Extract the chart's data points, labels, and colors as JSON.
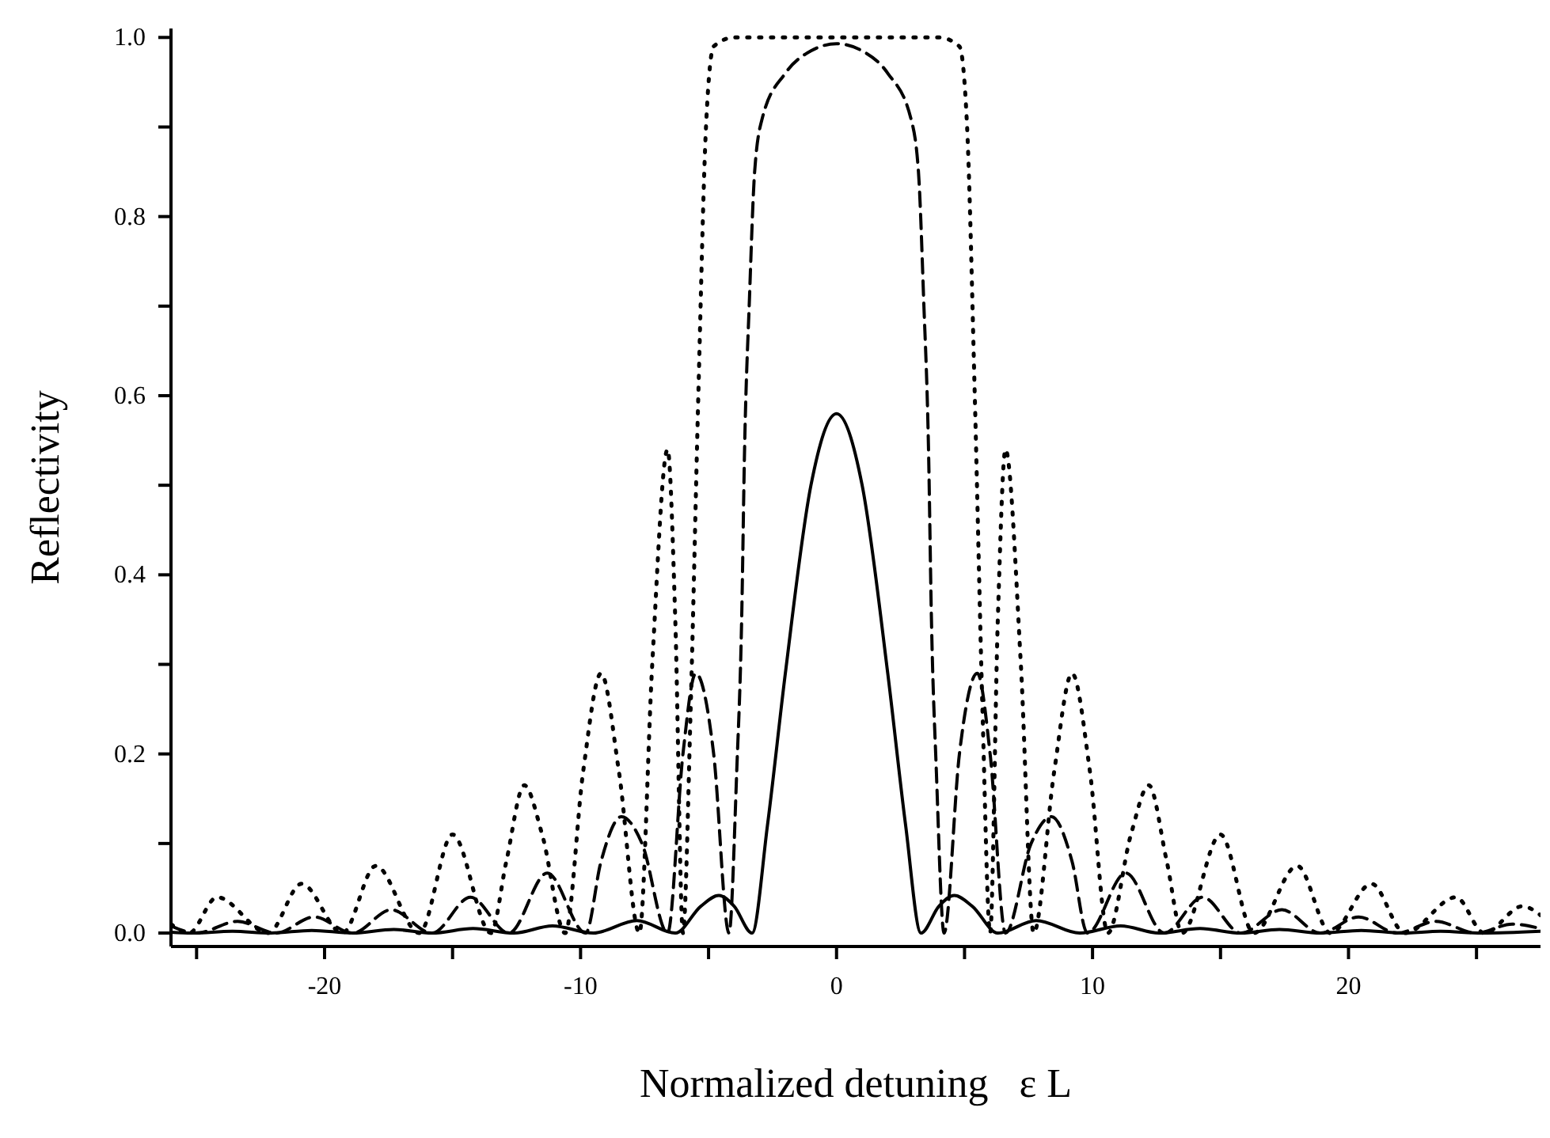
{
  "chart_data": {
    "type": "line",
    "xlabel": "Normalized detuning   ε L",
    "ylabel": "Reflectivity",
    "xlim": [
      -26,
      27.5
    ],
    "ylim": [
      -0.015,
      1.01
    ],
    "xticks": [
      {
        "value": -25,
        "label": null
      },
      {
        "value": -20,
        "label": "-20"
      },
      {
        "value": -15,
        "label": null
      },
      {
        "value": -10,
        "label": "-10"
      },
      {
        "value": -5,
        "label": null
      },
      0,
      {
        "value": 5,
        "label": null
      },
      10,
      {
        "value": 15,
        "label": null
      },
      20,
      {
        "value": 25,
        "label": null
      }
    ],
    "yticks": [
      {
        "value": 0,
        "label": "0.0"
      },
      {
        "value": 0.1,
        "label": null
      },
      0.2,
      {
        "value": 0.3,
        "label": null
      },
      0.4,
      {
        "value": 0.5,
        "label": null
      },
      0.6,
      {
        "value": 0.7,
        "label": null
      },
      0.8,
      {
        "value": 0.9,
        "label": null
      },
      {
        "value": 1,
        "label": "1.0"
      }
    ],
    "grid": false,
    "legend": false,
    "series": [
      {
        "color": "#000000",
        "line_style": "solid",
        "x": [
          -26,
          -25.2,
          -23.6,
          -22.1,
          -20.5,
          -18.9,
          -17.3,
          -15.8,
          -14.2,
          -12.6,
          -11.1,
          -9.5,
          -7.8,
          -6.3,
          -5.3,
          -4.6,
          -4,
          -3.3,
          -2.7,
          -2,
          -1,
          0,
          1,
          2,
          2.7,
          3.3,
          4,
          4.6,
          5.3,
          6.3,
          7.8,
          9.5,
          11.1,
          12.6,
          14.2,
          15.8,
          17.3,
          18.9,
          20.5,
          22.1,
          23.6,
          25.2,
          27.5
        ],
        "values": [
          0.001,
          0,
          0.002,
          0,
          0.003,
          0,
          0.004,
          0,
          0.005,
          0,
          0.008,
          0,
          0.014,
          0,
          0.03,
          0.042,
          0.03,
          0,
          0.12,
          0.29,
          0.5,
          0.58,
          0.5,
          0.29,
          0.12,
          0,
          0.03,
          0.042,
          0.03,
          0,
          0.014,
          0,
          0.008,
          0,
          0.005,
          0,
          0.004,
          0,
          0.003,
          0,
          0.002,
          0,
          0.002
        ]
      },
      {
        "color": "#000000",
        "line_style": "dashed",
        "x": [
          -26,
          -25,
          -23.4,
          -21.9,
          -20.4,
          -18.9,
          -17.4,
          -15.8,
          -14.3,
          -12.8,
          -11.3,
          -9.8,
          -9.2,
          -8.4,
          -7.6,
          -6.6,
          -6,
          -5.5,
          -4.8,
          -4.2,
          -3.9,
          -3.7,
          -3.6,
          -3.4,
          -3.2,
          -2.9,
          -2,
          -1,
          0,
          1,
          2,
          2.9,
          3.2,
          3.4,
          3.6,
          3.7,
          3.9,
          4.2,
          4.8,
          5.5,
          6,
          6.6,
          7.6,
          8.4,
          9.2,
          9.8,
          11.3,
          12.8,
          14.3,
          15.8,
          17.4,
          18.9,
          20.4,
          21.9,
          23.4,
          25,
          26.4,
          27.5
        ],
        "values": [
          0.008,
          0,
          0.013,
          0,
          0.018,
          0,
          0.026,
          0,
          0.04,
          0,
          0.067,
          0,
          0.08,
          0.13,
          0.1,
          0,
          0.2,
          0.29,
          0.2,
          0,
          0.18,
          0.36,
          0.53,
          0.71,
          0.85,
          0.91,
          0.96,
          0.985,
          0.993,
          0.985,
          0.96,
          0.91,
          0.85,
          0.71,
          0.53,
          0.36,
          0.18,
          0,
          0.2,
          0.29,
          0.2,
          0,
          0.1,
          0.13,
          0.08,
          0,
          0.067,
          0,
          0.04,
          0,
          0.026,
          0,
          0.018,
          0,
          0.013,
          0,
          0.01,
          0.005
        ]
      },
      {
        "color": "#000000",
        "line_style": "dotted",
        "x": [
          -26,
          -25.3,
          -24.2,
          -22.2,
          -20.9,
          -19.3,
          -18,
          -16.3,
          -15,
          -13.5,
          -12.9,
          -12.2,
          -11.5,
          -10.6,
          -9.9,
          -9.2,
          -8.5,
          -7.7,
          -7.2,
          -6.6,
          -6.3,
          -6,
          -5.7,
          -5.4,
          -5.1,
          -4.8,
          -4,
          0,
          4,
          4.8,
          5.1,
          5.4,
          5.7,
          6,
          6.3,
          6.6,
          7.2,
          7.7,
          8.5,
          9.2,
          9.9,
          10.6,
          11.5,
          12.2,
          12.9,
          13.5,
          15,
          16.3,
          18,
          19.3,
          20.9,
          22.2,
          24.2,
          25.3,
          26.8,
          27.5
        ],
        "values": [
          0.01,
          0,
          0.04,
          0,
          0.055,
          0,
          0.075,
          0,
          0.11,
          0,
          0.08,
          0.165,
          0.11,
          0,
          0.18,
          0.29,
          0.18,
          0,
          0.3,
          0.54,
          0.35,
          0,
          0.25,
          0.6,
          0.9,
          0.99,
          1,
          1,
          1,
          0.99,
          0.9,
          0.6,
          0.25,
          0,
          0.35,
          0.54,
          0.3,
          0,
          0.18,
          0.29,
          0.18,
          0,
          0.11,
          0.165,
          0.08,
          0,
          0.11,
          0,
          0.075,
          0,
          0.055,
          0,
          0.04,
          0,
          0.03,
          0.02
        ]
      }
    ]
  }
}
